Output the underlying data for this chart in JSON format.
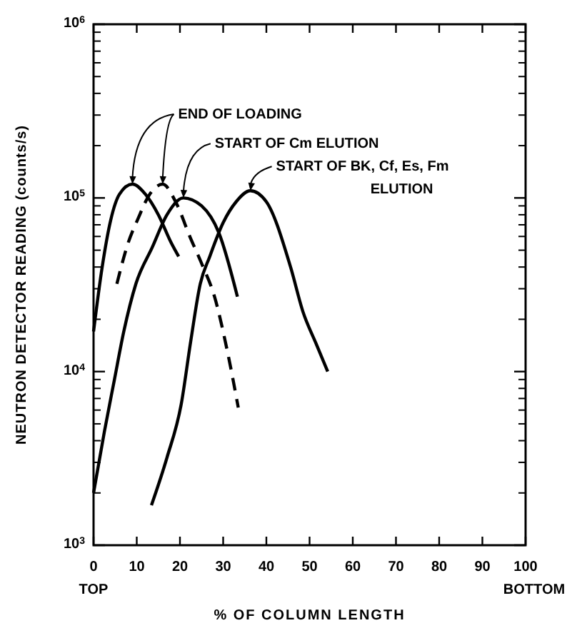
{
  "chart_data": {
    "type": "line",
    "xlabel": "% OF COLUMN LENGTH",
    "ylabel": "NEUTRON DETECTOR READING (counts/s)",
    "log": "y",
    "xlim": [
      0,
      100
    ],
    "xticks": [
      0,
      10,
      20,
      30,
      40,
      50,
      60,
      70,
      80,
      90,
      100
    ],
    "ylim": [
      1000,
      1000000
    ],
    "yticks": [
      {
        "value": 1000,
        "label": "10$^{3}$"
      },
      {
        "value": 10000,
        "label": "10$^{4}$"
      },
      {
        "value": 100000,
        "label": "10$^{5}$"
      },
      {
        "value": 1000000,
        "label": "10$^{6}$"
      }
    ],
    "grid": false,
    "marker": "none",
    "series": [
      {
        "color": "#000000",
        "line_style": "solid",
        "x": [
          0,
          2,
          4,
          6,
          9,
          12,
          15,
          18,
          19.7
        ],
        "values": [
          17000,
          40000,
          75000,
          105000,
          120000,
          105000,
          80000,
          55000,
          46000
        ]
      },
      {
        "color": "#000000",
        "line_style": "dashed",
        "x": [
          5.4,
          8,
          10.3,
          13,
          16,
          19,
          22.4,
          25,
          28,
          31,
          33.5
        ],
        "values": [
          32000,
          55000,
          76000,
          105000,
          120000,
          95000,
          59000,
          42000,
          27000,
          13000,
          6200
        ]
      },
      {
        "color": "#000000",
        "line_style": "solid",
        "x": [
          0,
          2.5,
          4.8,
          7,
          9.8,
          13.6,
          17,
          20.8,
          25,
          29,
          33.3
        ],
        "values": [
          2000,
          4500,
          8900,
          17000,
          32000,
          52000,
          80000,
          100000,
          90000,
          63000,
          27000
        ]
      },
      {
        "color": "#000000",
        "line_style": "solid",
        "x": [
          13.4,
          17,
          20.3,
          22.5,
          24.7,
          26.9,
          30,
          33,
          36.3,
          40,
          45.6,
          48.5,
          51.5,
          54.2
        ],
        "values": [
          1700,
          3200,
          6500,
          15000,
          32000,
          46000,
          72000,
          95000,
          110000,
          95000,
          40000,
          22000,
          14500,
          10000
        ]
      }
    ],
    "annotations": [
      {
        "text": "END OF LOADING",
        "x": 9,
        "y": 120000
      },
      {
        "text": "START OF Cm ELUTION",
        "x": 20.8,
        "y": 100000
      },
      {
        "text": "START OF BK, Cf, Es, Fm\nELUTION",
        "x": 36.3,
        "y": 110000
      },
      "TOP",
      "BOTTOM"
    ]
  }
}
